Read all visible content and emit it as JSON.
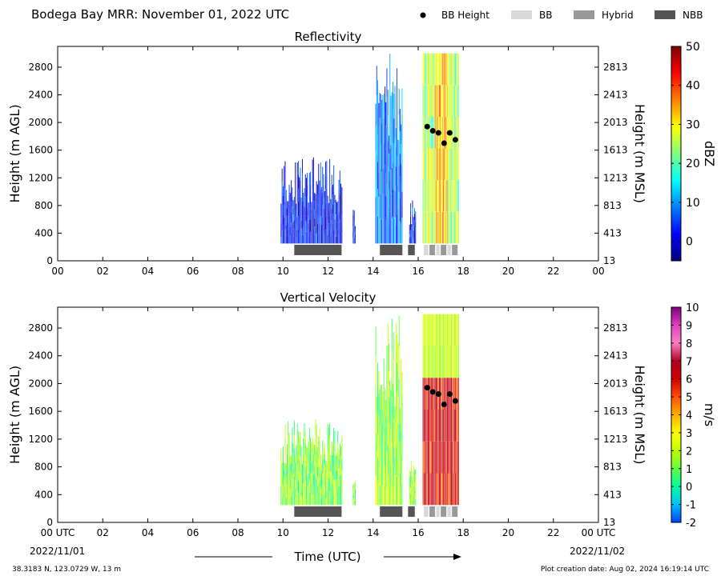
{
  "header": {
    "title": "Bodega Bay MRR:  November 01, 2022 UTC",
    "legend": [
      {
        "label": "BB Height",
        "kind": "dot",
        "color": "#000000"
      },
      {
        "label": "BB",
        "kind": "box",
        "color": "#d9d9d9"
      },
      {
        "label": "Hybrid",
        "kind": "box",
        "color": "#999999"
      },
      {
        "label": "NBB",
        "kind": "box",
        "color": "#555555"
      }
    ]
  },
  "footer": {
    "xlabel": "Time (UTC)",
    "location": "38.3183 N, 123.0729 W, 13 m",
    "creation": "Plot creation date: Aug 02, 2024 16:19:14 UTC",
    "start_date": "2022/11/01",
    "end_date": "2022/11/02"
  },
  "chart_data": [
    {
      "type": "heatmap",
      "title": "Reflectivity",
      "ylabel": "Height (m AGL)",
      "ylabel_right": "Height (m MSL)",
      "xlim": [
        0,
        24
      ],
      "ylim": [
        0,
        3100
      ],
      "x_ticks": [
        "00",
        "02",
        "04",
        "06",
        "08",
        "10",
        "12",
        "14",
        "16",
        "18",
        "20",
        "22",
        "00"
      ],
      "y_ticks": [
        0,
        400,
        800,
        1200,
        1600,
        2000,
        2400,
        2800
      ],
      "y_ticks_right": [
        "13",
        "413",
        "813",
        "1213",
        "1613",
        "2013",
        "2413",
        "2813"
      ],
      "colorbar": {
        "label": "dBZ",
        "ticks": [
          0,
          10,
          20,
          30,
          40,
          50
        ],
        "range": [
          -5,
          50
        ],
        "colors": [
          "#00007f",
          "#0000ff",
          "#0080ff",
          "#00ffff",
          "#80ff80",
          "#ffff00",
          "#ff8000",
          "#ff0000",
          "#7f0000"
        ]
      },
      "echo_regions": [
        {
          "t_start": 9.9,
          "t_end": 12.6,
          "h_top": 1500,
          "value": 2
        },
        {
          "t_start": 13.1,
          "t_end": 13.2,
          "h_top": 800,
          "value": 2
        },
        {
          "t_start": 14.1,
          "t_end": 15.3,
          "h_top": 3000,
          "value": 8
        },
        {
          "t_start": 15.6,
          "t_end": 15.9,
          "h_top": 900,
          "value": 3
        },
        {
          "t_start": 16.2,
          "t_end": 17.8,
          "h_top": 3000,
          "value": 25
        }
      ],
      "bb_height": {
        "times": [
          16.4,
          16.65,
          16.9,
          17.15,
          17.4,
          17.65
        ],
        "heights": [
          1940,
          1880,
          1850,
          1700,
          1850,
          1750
        ]
      },
      "precip_type": [
        {
          "t_start": 10.5,
          "t_end": 12.6,
          "type": "NBB"
        },
        {
          "t_start": 14.3,
          "t_end": 15.3,
          "type": "NBB"
        },
        {
          "t_start": 15.55,
          "t_end": 15.85,
          "type": "NBB"
        },
        {
          "t_start": 16.25,
          "t_end": 16.45,
          "type": "BB"
        },
        {
          "t_start": 16.5,
          "t_end": 16.75,
          "type": "Hybrid"
        },
        {
          "t_start": 16.8,
          "t_end": 16.95,
          "type": "BB"
        },
        {
          "t_start": 17.0,
          "t_end": 17.25,
          "type": "Hybrid"
        },
        {
          "t_start": 17.3,
          "t_end": 17.45,
          "type": "BB"
        },
        {
          "t_start": 17.5,
          "t_end": 17.75,
          "type": "Hybrid"
        }
      ]
    },
    {
      "type": "heatmap",
      "title": "Vertical Velocity",
      "ylabel": "Height (m AGL)",
      "ylabel_right": "Height (m MSL)",
      "xlim": [
        0,
        24
      ],
      "ylim": [
        0,
        3100
      ],
      "x_ticks": [
        "00 UTC",
        "02",
        "04",
        "06",
        "08",
        "10",
        "12",
        "14",
        "16",
        "18",
        "20",
        "22",
        "00 UTC"
      ],
      "y_ticks": [
        0,
        400,
        800,
        1200,
        1600,
        2000,
        2400,
        2800
      ],
      "y_ticks_right": [
        "13",
        "413",
        "813",
        "1213",
        "1613",
        "2013",
        "2413",
        "2813"
      ],
      "colorbar": {
        "label": "m/s",
        "ticks": [
          -2,
          -1,
          0,
          1,
          2,
          3,
          4,
          5,
          6,
          7,
          8,
          9,
          10
        ],
        "range": [
          -2,
          10
        ],
        "colors": [
          "#0040ff",
          "#00c0ff",
          "#00ffa0",
          "#60ff40",
          "#c0ff00",
          "#ffff00",
          "#ffb000",
          "#ff5000",
          "#d00000",
          "#b00020",
          "#ff80c0",
          "#e040c0",
          "#800080"
        ]
      },
      "echo_regions": [
        {
          "t_start": 9.9,
          "t_end": 12.6,
          "h_top": 1500,
          "value": 1.2
        },
        {
          "t_start": 13.1,
          "t_end": 13.2,
          "h_top": 800,
          "value": 1
        },
        {
          "t_start": 14.1,
          "t_end": 15.3,
          "h_top": 3000,
          "value": 1.5
        },
        {
          "t_start": 15.6,
          "t_end": 15.9,
          "h_top": 900,
          "value": 1.5
        },
        {
          "t_start": 16.2,
          "t_end": 17.8,
          "h_top": 3000,
          "value": 6
        }
      ],
      "bb_height": {
        "times": [
          16.4,
          16.65,
          16.9,
          17.15,
          17.4,
          17.65
        ],
        "heights": [
          1940,
          1880,
          1850,
          1700,
          1850,
          1750
        ]
      },
      "precip_type": [
        {
          "t_start": 10.5,
          "t_end": 12.6,
          "type": "NBB"
        },
        {
          "t_start": 14.3,
          "t_end": 15.3,
          "type": "NBB"
        },
        {
          "t_start": 15.55,
          "t_end": 15.85,
          "type": "NBB"
        },
        {
          "t_start": 16.25,
          "t_end": 16.45,
          "type": "BB"
        },
        {
          "t_start": 16.5,
          "t_end": 16.75,
          "type": "Hybrid"
        },
        {
          "t_start": 16.8,
          "t_end": 16.95,
          "type": "BB"
        },
        {
          "t_start": 17.0,
          "t_end": 17.25,
          "type": "Hybrid"
        },
        {
          "t_start": 17.3,
          "t_end": 17.45,
          "type": "BB"
        },
        {
          "t_start": 17.5,
          "t_end": 17.75,
          "type": "Hybrid"
        }
      ]
    }
  ]
}
